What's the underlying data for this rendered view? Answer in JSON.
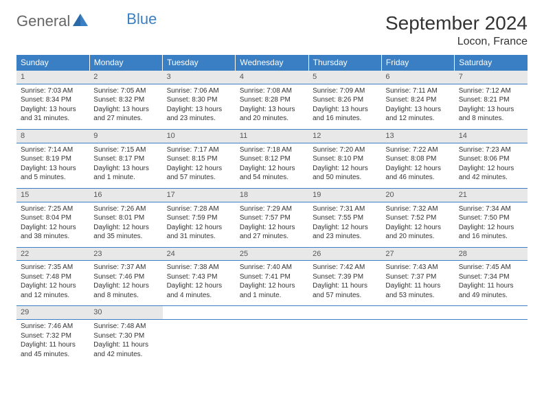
{
  "logo": {
    "part1": "General",
    "part2": "Blue"
  },
  "title": "September 2024",
  "location": "Locon, France",
  "day_headers": [
    "Sunday",
    "Monday",
    "Tuesday",
    "Wednesday",
    "Thursday",
    "Friday",
    "Saturday"
  ],
  "header_bg": "#3a7fc4",
  "daynum_bg": "#e8e8e8",
  "weeks": [
    [
      {
        "num": "1",
        "sunrise": "Sunrise: 7:03 AM",
        "sunset": "Sunset: 8:34 PM",
        "daylight1": "Daylight: 13 hours",
        "daylight2": "and 31 minutes."
      },
      {
        "num": "2",
        "sunrise": "Sunrise: 7:05 AM",
        "sunset": "Sunset: 8:32 PM",
        "daylight1": "Daylight: 13 hours",
        "daylight2": "and 27 minutes."
      },
      {
        "num": "3",
        "sunrise": "Sunrise: 7:06 AM",
        "sunset": "Sunset: 8:30 PM",
        "daylight1": "Daylight: 13 hours",
        "daylight2": "and 23 minutes."
      },
      {
        "num": "4",
        "sunrise": "Sunrise: 7:08 AM",
        "sunset": "Sunset: 8:28 PM",
        "daylight1": "Daylight: 13 hours",
        "daylight2": "and 20 minutes."
      },
      {
        "num": "5",
        "sunrise": "Sunrise: 7:09 AM",
        "sunset": "Sunset: 8:26 PM",
        "daylight1": "Daylight: 13 hours",
        "daylight2": "and 16 minutes."
      },
      {
        "num": "6",
        "sunrise": "Sunrise: 7:11 AM",
        "sunset": "Sunset: 8:24 PM",
        "daylight1": "Daylight: 13 hours",
        "daylight2": "and 12 minutes."
      },
      {
        "num": "7",
        "sunrise": "Sunrise: 7:12 AM",
        "sunset": "Sunset: 8:21 PM",
        "daylight1": "Daylight: 13 hours",
        "daylight2": "and 8 minutes."
      }
    ],
    [
      {
        "num": "8",
        "sunrise": "Sunrise: 7:14 AM",
        "sunset": "Sunset: 8:19 PM",
        "daylight1": "Daylight: 13 hours",
        "daylight2": "and 5 minutes."
      },
      {
        "num": "9",
        "sunrise": "Sunrise: 7:15 AM",
        "sunset": "Sunset: 8:17 PM",
        "daylight1": "Daylight: 13 hours",
        "daylight2": "and 1 minute."
      },
      {
        "num": "10",
        "sunrise": "Sunrise: 7:17 AM",
        "sunset": "Sunset: 8:15 PM",
        "daylight1": "Daylight: 12 hours",
        "daylight2": "and 57 minutes."
      },
      {
        "num": "11",
        "sunrise": "Sunrise: 7:18 AM",
        "sunset": "Sunset: 8:12 PM",
        "daylight1": "Daylight: 12 hours",
        "daylight2": "and 54 minutes."
      },
      {
        "num": "12",
        "sunrise": "Sunrise: 7:20 AM",
        "sunset": "Sunset: 8:10 PM",
        "daylight1": "Daylight: 12 hours",
        "daylight2": "and 50 minutes."
      },
      {
        "num": "13",
        "sunrise": "Sunrise: 7:22 AM",
        "sunset": "Sunset: 8:08 PM",
        "daylight1": "Daylight: 12 hours",
        "daylight2": "and 46 minutes."
      },
      {
        "num": "14",
        "sunrise": "Sunrise: 7:23 AM",
        "sunset": "Sunset: 8:06 PM",
        "daylight1": "Daylight: 12 hours",
        "daylight2": "and 42 minutes."
      }
    ],
    [
      {
        "num": "15",
        "sunrise": "Sunrise: 7:25 AM",
        "sunset": "Sunset: 8:04 PM",
        "daylight1": "Daylight: 12 hours",
        "daylight2": "and 38 minutes."
      },
      {
        "num": "16",
        "sunrise": "Sunrise: 7:26 AM",
        "sunset": "Sunset: 8:01 PM",
        "daylight1": "Daylight: 12 hours",
        "daylight2": "and 35 minutes."
      },
      {
        "num": "17",
        "sunrise": "Sunrise: 7:28 AM",
        "sunset": "Sunset: 7:59 PM",
        "daylight1": "Daylight: 12 hours",
        "daylight2": "and 31 minutes."
      },
      {
        "num": "18",
        "sunrise": "Sunrise: 7:29 AM",
        "sunset": "Sunset: 7:57 PM",
        "daylight1": "Daylight: 12 hours",
        "daylight2": "and 27 minutes."
      },
      {
        "num": "19",
        "sunrise": "Sunrise: 7:31 AM",
        "sunset": "Sunset: 7:55 PM",
        "daylight1": "Daylight: 12 hours",
        "daylight2": "and 23 minutes."
      },
      {
        "num": "20",
        "sunrise": "Sunrise: 7:32 AM",
        "sunset": "Sunset: 7:52 PM",
        "daylight1": "Daylight: 12 hours",
        "daylight2": "and 20 minutes."
      },
      {
        "num": "21",
        "sunrise": "Sunrise: 7:34 AM",
        "sunset": "Sunset: 7:50 PM",
        "daylight1": "Daylight: 12 hours",
        "daylight2": "and 16 minutes."
      }
    ],
    [
      {
        "num": "22",
        "sunrise": "Sunrise: 7:35 AM",
        "sunset": "Sunset: 7:48 PM",
        "daylight1": "Daylight: 12 hours",
        "daylight2": "and 12 minutes."
      },
      {
        "num": "23",
        "sunrise": "Sunrise: 7:37 AM",
        "sunset": "Sunset: 7:46 PM",
        "daylight1": "Daylight: 12 hours",
        "daylight2": "and 8 minutes."
      },
      {
        "num": "24",
        "sunrise": "Sunrise: 7:38 AM",
        "sunset": "Sunset: 7:43 PM",
        "daylight1": "Daylight: 12 hours",
        "daylight2": "and 4 minutes."
      },
      {
        "num": "25",
        "sunrise": "Sunrise: 7:40 AM",
        "sunset": "Sunset: 7:41 PM",
        "daylight1": "Daylight: 12 hours",
        "daylight2": "and 1 minute."
      },
      {
        "num": "26",
        "sunrise": "Sunrise: 7:42 AM",
        "sunset": "Sunset: 7:39 PM",
        "daylight1": "Daylight: 11 hours",
        "daylight2": "and 57 minutes."
      },
      {
        "num": "27",
        "sunrise": "Sunrise: 7:43 AM",
        "sunset": "Sunset: 7:37 PM",
        "daylight1": "Daylight: 11 hours",
        "daylight2": "and 53 minutes."
      },
      {
        "num": "28",
        "sunrise": "Sunrise: 7:45 AM",
        "sunset": "Sunset: 7:34 PM",
        "daylight1": "Daylight: 11 hours",
        "daylight2": "and 49 minutes."
      }
    ],
    [
      {
        "num": "29",
        "sunrise": "Sunrise: 7:46 AM",
        "sunset": "Sunset: 7:32 PM",
        "daylight1": "Daylight: 11 hours",
        "daylight2": "and 45 minutes."
      },
      {
        "num": "30",
        "sunrise": "Sunrise: 7:48 AM",
        "sunset": "Sunset: 7:30 PM",
        "daylight1": "Daylight: 11 hours",
        "daylight2": "and 42 minutes."
      },
      null,
      null,
      null,
      null,
      null
    ]
  ]
}
